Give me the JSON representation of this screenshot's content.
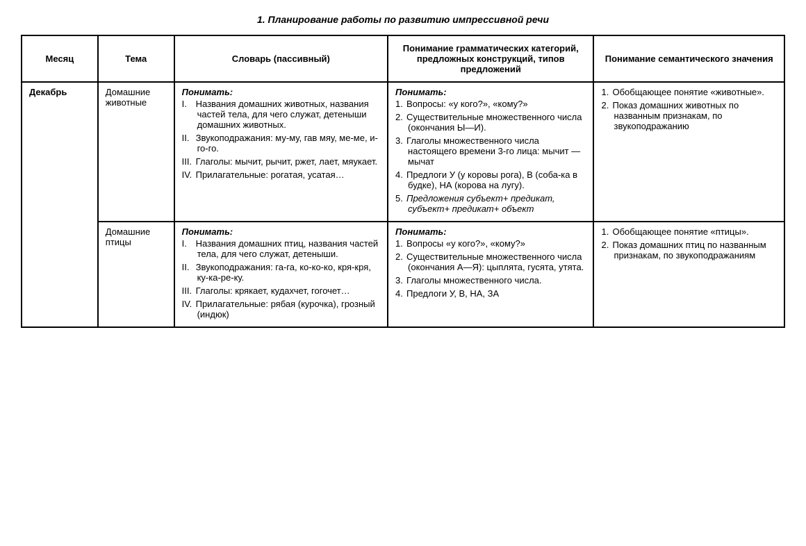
{
  "title": "1. Планирование работы по развитию импрессивной речи",
  "headers": {
    "month": "Месяц",
    "topic": "Тема",
    "vocab": "Словарь (пассивный)",
    "grammar": "Понимание грамматических категорий, предложных конструкций, типов предложений",
    "semantic": "Понимание семантического значения"
  },
  "month": "Декабрь",
  "rows": [
    {
      "topic": "Домашние животные",
      "vocab_lead": "Понимать:",
      "vocab_items": [
        "Названия домашних животных, названия частей тела, для чего служат, детеныши домашних животных.",
        "Звукоподражания: му-му, гав мяу, ме-ме, и-го-го.",
        "Глаголы: мычит, рычит, ржет, лает, мяукает.",
        "Прилагательные: рогатая, усатая…"
      ],
      "grammar_lead": "Понимать:",
      "grammar_items": [
        "Вопросы: «у кого?», «кому?»",
        "Существительные множественного числа (окончания Ы—И).",
        "Глаголы множественного числа настоящего времени 3-го лица: мычит — мычат",
        "Предлоги У (у коровы рога), В (соба-ка в будке), НА (корова на лугу).",
        "Предложения субъект+ предикат, субъект+ предикат+ объект"
      ],
      "semantic_items": [
        "Обобщающее понятие «животные».",
        "Показ домашних живот­ных по названным призна­кам, по звукоподража­нию"
      ]
    },
    {
      "topic": "Домашние птицы",
      "vocab_lead": "Понимать:",
      "vocab_items": [
        "Названия домашних птиц, названия частей тела, для чего служат, детеныши.",
        "Звукоподражания: га-га, ко-ко-ко, кря-кря, ку-ка-ре-ку.",
        "Глаголы: крякает, кудахчет, гогочет…",
        "Прилагательные: рябая (куроч­ка), грозный (индюк)"
      ],
      "grammar_lead": "Понимать:",
      "grammar_items": [
        "Вопросы «у кого?», «кому?»",
        "Существительные мно­жественного числа (окон­чания А—Я): цыплята, гусята, утята.",
        "Глаголы множественного числа.",
        "Предлоги У, В, НА, ЗА"
      ],
      "semantic_items": [
        "Обобщающее понятие «птицы».",
        "Показ домашних птиц по названным признакам, по звукоподражаниям"
      ]
    }
  ],
  "roman": [
    "I.",
    "II.",
    "III.",
    "IV."
  ],
  "arabic": [
    "1.",
    "2.",
    "3.",
    "4.",
    "5."
  ]
}
